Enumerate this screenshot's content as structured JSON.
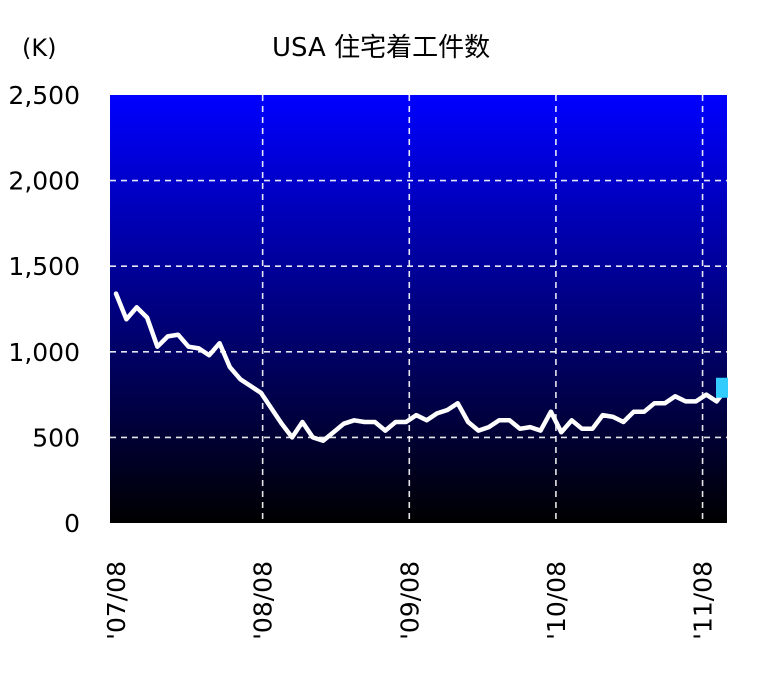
{
  "chart_data": {
    "type": "line",
    "title": "USA 住宅着工件数",
    "unit_label": "(K)",
    "y_ticks": [
      "2,500",
      "2,000",
      "1,500",
      "1,000",
      "500",
      "0"
    ],
    "ylim": [
      0,
      2500
    ],
    "x_ticks": [
      "'07/08",
      "'08/08",
      "'09/08",
      "'10/08",
      "'11/08"
    ],
    "x_range_months": [
      0,
      50
    ],
    "grid": true,
    "colors": {
      "background_top": "#0000ff",
      "background_bottom": "#000000",
      "line": "#ffffff",
      "marker": "#33ccff"
    },
    "series": [
      {
        "values": [
          1340,
          1190,
          1260,
          1200,
          1030,
          1090,
          1100,
          1030,
          1020,
          980,
          1050,
          910,
          840,
          800,
          760,
          670,
          580,
          500,
          590,
          500,
          480,
          530,
          580,
          600,
          590,
          590,
          540,
          590,
          590,
          630,
          600,
          640,
          660,
          700,
          590,
          540,
          560,
          600,
          600,
          550,
          560,
          540,
          650,
          530,
          600,
          550,
          550,
          630,
          620,
          590,
          650,
          650,
          700,
          700,
          740,
          710,
          710,
          750,
          710,
          790
        ]
      }
    ]
  }
}
